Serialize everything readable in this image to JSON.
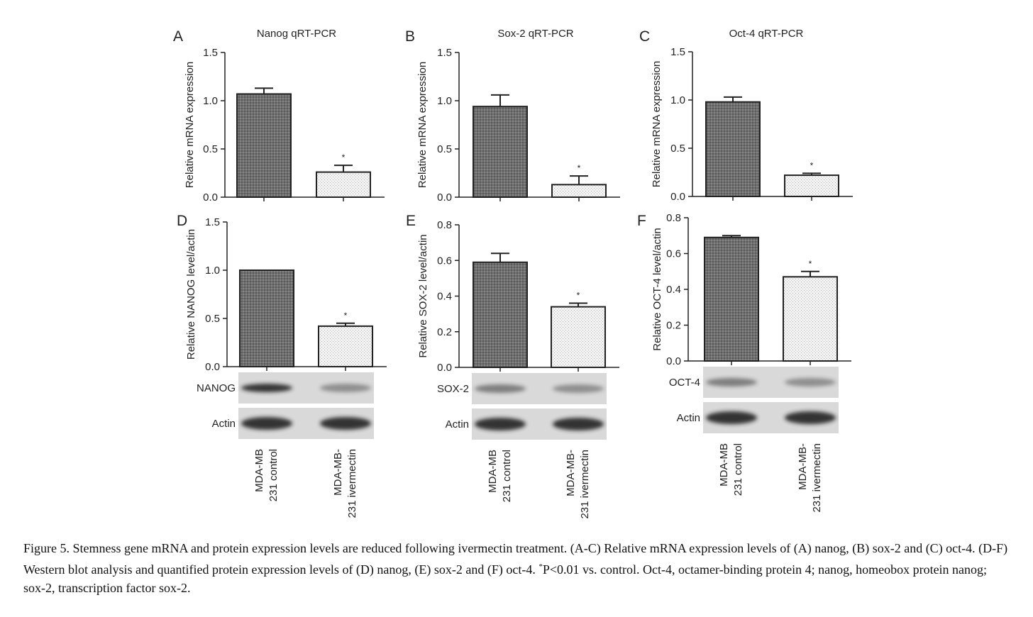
{
  "chart_data": [
    {
      "panel": "A",
      "type": "bar",
      "title": "Nanog qRT-PCR",
      "ylabel": "Relative mRNA expression",
      "ylim": [
        0,
        1.5
      ],
      "yticks": [
        "0.0",
        "0.5",
        "1.0",
        "1.5"
      ],
      "categories": [
        "MDA-MB 231 control",
        "MDA-MB-231 ivermectin"
      ],
      "values": [
        1.07,
        0.26
      ],
      "errors": [
        0.06,
        0.07
      ],
      "sig": [
        "",
        "*"
      ]
    },
    {
      "panel": "B",
      "type": "bar",
      "title": "Sox-2 qRT-PCR",
      "ylabel": "Relative mRNA expression",
      "ylim": [
        0,
        1.5
      ],
      "yticks": [
        "0.0",
        "0.5",
        "1.0",
        "1.5"
      ],
      "categories": [
        "MDA-MB 231 control",
        "MDA-MB-231 ivermectin"
      ],
      "values": [
        0.94,
        0.13
      ],
      "errors": [
        0.12,
        0.09
      ],
      "sig": [
        "",
        "*"
      ]
    },
    {
      "panel": "C",
      "type": "bar",
      "title": "Oct-4 qRT-PCR",
      "ylabel": "Relative mRNA expression",
      "ylim": [
        0,
        1.5
      ],
      "yticks": [
        "0.0",
        "0.5",
        "1.0",
        "1.5"
      ],
      "categories": [
        "MDA-MB 231 control",
        "MDA-MB-231 ivermectin"
      ],
      "values": [
        0.98,
        0.22
      ],
      "errors": [
        0.05,
        0.02
      ],
      "sig": [
        "",
        "*"
      ]
    },
    {
      "panel": "D",
      "type": "bar",
      "title": "",
      "ylabel": "Relative NANOG level/actin",
      "ylim": [
        0,
        1.5
      ],
      "yticks": [
        "0.0",
        "0.5",
        "1.0",
        "1.5"
      ],
      "categories": [
        "MDA-MB 231 control",
        "MDA-MB-231 ivermectin"
      ],
      "values": [
        1.0,
        0.42
      ],
      "errors": [
        0.0,
        0.03
      ],
      "sig": [
        "",
        "*"
      ],
      "blot_labels": [
        "NANOG",
        "Actin"
      ]
    },
    {
      "panel": "E",
      "type": "bar",
      "title": "",
      "ylabel": "Relative SOX-2 level/actin",
      "ylim": [
        0,
        0.8
      ],
      "yticks": [
        "0.0",
        "0.2",
        "0.4",
        "0.6",
        "0.8"
      ],
      "categories": [
        "MDA-MB 231 control",
        "MDA-MB-231 ivermectin"
      ],
      "values": [
        0.59,
        0.34
      ],
      "errors": [
        0.05,
        0.02
      ],
      "sig": [
        "",
        "*"
      ],
      "blot_labels": [
        "SOX-2",
        "Actin"
      ]
    },
    {
      "panel": "F",
      "type": "bar",
      "title": "",
      "ylabel": "Relative OCT-4  level/actin",
      "ylim": [
        0,
        0.8
      ],
      "yticks": [
        "0.0",
        "0.2",
        "0.4",
        "0.6",
        "0.8"
      ],
      "categories": [
        "MDA-MB 231 control",
        "MDA-MB-231 ivermectin"
      ],
      "values": [
        0.69,
        0.47
      ],
      "errors": [
        0.01,
        0.03
      ],
      "sig": [
        "",
        "*"
      ],
      "blot_labels": [
        "OCT-4",
        "Actin"
      ]
    }
  ],
  "lane_labels": [
    [
      "MDA-MB",
      "231 control"
    ],
    [
      "MDA-MB-",
      "231 ivermectin"
    ]
  ],
  "caption": {
    "text_before_sup": "Figure 5. Stemness gene mRNA and protein expression levels are reduced following ivermectin treatment. (A-C) Relative mRNA expression levels of (A) nanog, (B) sox-2 and (C) oct-4. (D-F) Western blot analysis and quantified protein expression levels of (D) nanog, (E) sox-2 and (F) oct-4. ",
    "sup": "*",
    "text_after_sup": "P<0.01 vs. control. Oct-4, octamer-binding protein 4; nanog, homeobox protein nanog; sox-2, transcription factor sox-2."
  },
  "colors": {
    "axis": "#222222",
    "control_fill": "#6f6f6f",
    "ivermectin_fill": "#ececec",
    "blot_bg": "#d9d9d9",
    "band": "#222222"
  }
}
